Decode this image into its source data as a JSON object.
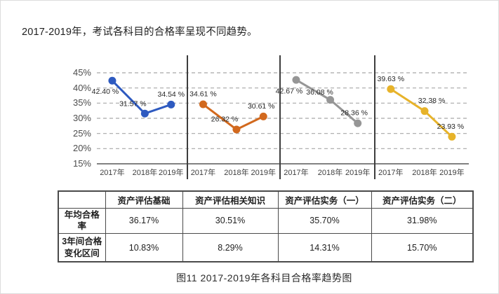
{
  "page": {
    "intro": "2017-2019年，考试各科目的合格率呈现不同趋势。",
    "caption": "图11  2017-2019年各科目合格率趋势图"
  },
  "chart_data": {
    "type": "line",
    "title": "2017-2019年各科目合格率趋势图",
    "categories": [
      "2017年",
      "2018年",
      "2019年"
    ],
    "y_ticks": [
      "45%",
      "40%",
      "35%",
      "30%",
      "25%",
      "20%",
      "15%"
    ],
    "ylim": [
      15,
      45
    ],
    "grid": "horizontal-dashed",
    "legend_position": "none",
    "series": [
      {
        "name": "资产评估基础",
        "color": "#2e5ac0",
        "values": [
          42.4,
          31.57,
          34.54
        ],
        "point_labels": [
          "42.40 %",
          "31.57 %",
          "34.54 %"
        ],
        "label_offsets": [
          [
            -10,
            15
          ],
          [
            -17,
            -14
          ],
          [
            0,
            -15
          ]
        ]
      },
      {
        "name": "资产评估相关知识",
        "color": "#d2691e",
        "values": [
          34.61,
          26.32,
          30.61
        ],
        "point_labels": [
          "34.61 %",
          "26.32 %",
          "30.61 %"
        ],
        "label_offsets": [
          [
            0,
            -15
          ],
          [
            -17,
            -15
          ],
          [
            -3,
            -15
          ]
        ]
      },
      {
        "name": "资产评估实务（一）",
        "color": "#969696",
        "values": [
          42.67,
          36.08,
          28.36
        ],
        "point_labels": [
          "42.67 %",
          "36.08 %",
          "28.36 %"
        ],
        "label_offsets": [
          [
            -10,
            16
          ],
          [
            -15,
            -11
          ],
          [
            -5,
            -15
          ]
        ]
      },
      {
        "name": "资产评估实务（二）",
        "color": "#e7b32a",
        "values": [
          39.63,
          32.38,
          23.93
        ],
        "point_labels": [
          "39.63 %",
          "32.38 %",
          "23.93 %"
        ],
        "label_offsets": [
          [
            0,
            -15
          ],
          [
            10,
            -15
          ],
          [
            -2,
            -15
          ]
        ]
      }
    ]
  },
  "table": {
    "corner": "",
    "columns": [
      "资产评估基础",
      "资产评估相关知识",
      "资产评估实务（一）",
      "资产评估实务（二）"
    ],
    "rows": [
      {
        "label": "年均合格率",
        "values": [
          "36.17%",
          "30.51%",
          "35.70%",
          "31.98%"
        ]
      },
      {
        "label": "3年间合格\n变化区间",
        "values": [
          "10.83%",
          "8.29%",
          "14.31%",
          "15.70%"
        ]
      }
    ]
  }
}
